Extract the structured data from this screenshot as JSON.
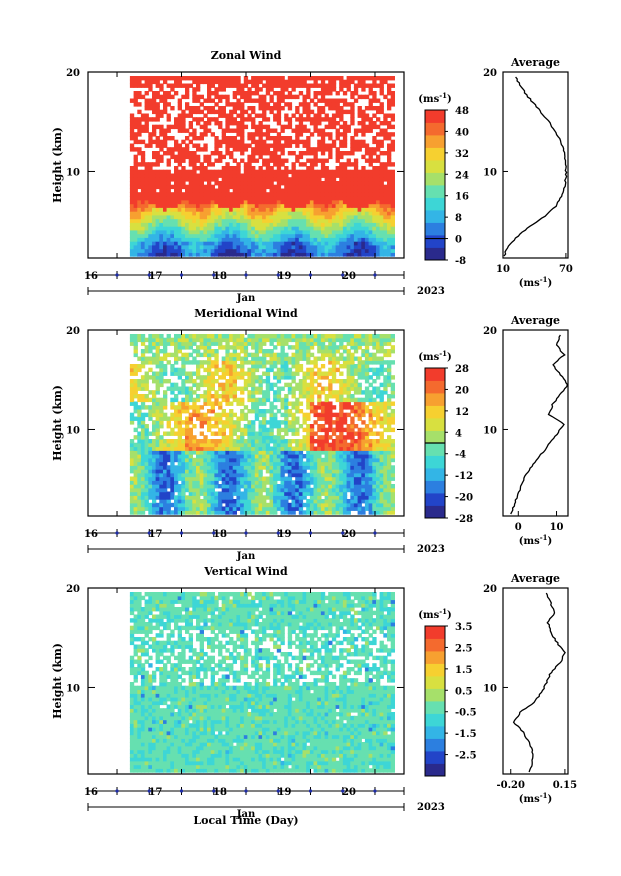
{
  "colormap": [
    "#2a2a8c",
    "#2244c8",
    "#2c7fe0",
    "#33b5e6",
    "#3dd6d6",
    "#66e0b0",
    "#a6e06a",
    "#d8e040",
    "#f6d030",
    "#f7a030",
    "#f46a2e",
    "#f23c2c"
  ],
  "chart_data": [
    {
      "type": "heatmap",
      "title": "Zonal Wind",
      "ylabel": "Height (km)",
      "xlabel": "Jan",
      "year": "2023",
      "x_ticks": [
        "16",
        "17",
        "18",
        "19",
        "20"
      ],
      "y_ticks": [
        "20",
        "10"
      ],
      "xlim": [
        15.55,
        20.45
      ],
      "ylim": [
        1.3,
        20.0
      ],
      "data_x_range": [
        16.2,
        20.3
      ],
      "colorbar": {
        "unit": "(ms-1)",
        "min": -8,
        "max": 48,
        "ticks": [
          "48",
          "40",
          "32",
          "24",
          "16",
          "8",
          "0",
          "-8"
        ],
        "contour_at": 0
      },
      "profile": {
        "title": "Average",
        "xlabel": "(ms-1)",
        "x_ticks": [
          "10",
          "70"
        ],
        "y_ticks": [
          "20",
          "10"
        ],
        "xlim": [
          10,
          72
        ],
        "height": [
          1.5,
          2.5,
          3.5,
          4.5,
          5.5,
          6.5,
          7.5,
          8.5,
          9.5,
          10.5,
          11.5,
          12.5,
          13.5,
          14.5,
          15.5,
          16.5,
          17.5,
          18.5,
          19.5
        ],
        "values": [
          11,
          15,
          24,
          36,
          50,
          60,
          66,
          69,
          70,
          70,
          69,
          67,
          63,
          57,
          50,
          42,
          34,
          27,
          22
        ]
      }
    },
    {
      "type": "heatmap",
      "title": "Meridional Wind",
      "ylabel": "Height (km)",
      "xlabel": "Jan",
      "year": "2023",
      "x_ticks": [
        "16",
        "17",
        "18",
        "19",
        "20"
      ],
      "y_ticks": [
        "20",
        "10"
      ],
      "xlim": [
        15.55,
        20.45
      ],
      "ylim": [
        1.3,
        20.0
      ],
      "data_x_range": [
        16.2,
        20.3
      ],
      "colorbar": {
        "unit": "(ms-1)",
        "min": -28,
        "max": 28,
        "ticks": [
          "28",
          "20",
          "12",
          "4",
          "-4",
          "-12",
          "-20",
          "-28"
        ],
        "contour_at": 0
      },
      "profile": {
        "title": "Average",
        "xlabel": "(ms-1)",
        "x_ticks": [
          "0",
          "10"
        ],
        "y_ticks": [
          "20",
          "10"
        ],
        "xlim": [
          -4,
          13
        ],
        "height": [
          1.5,
          2.5,
          3.5,
          4.5,
          5.5,
          6.5,
          7.5,
          8.5,
          9.5,
          10.5,
          11.5,
          12.5,
          13.5,
          14.5,
          15.5,
          16.5,
          17.5,
          18.5,
          19.5
        ],
        "values": [
          -2,
          -1,
          0,
          1,
          2,
          4,
          6,
          8,
          10,
          12,
          8,
          9,
          11,
          13,
          11,
          9,
          12,
          10,
          11
        ]
      }
    },
    {
      "type": "heatmap",
      "title": "Vertical Wind",
      "ylabel": "Height (km)",
      "xlabel": "Jan",
      "year": "2023",
      "x_ticks": [
        "16",
        "17",
        "18",
        "19",
        "20"
      ],
      "y_ticks": [
        "20",
        "10"
      ],
      "xlim": [
        15.55,
        20.45
      ],
      "ylim": [
        1.3,
        20.0
      ],
      "data_x_range": [
        16.2,
        20.3
      ],
      "colorbar": {
        "unit": "(ms-1)",
        "min": -3.5,
        "max": 3.5,
        "ticks": [
          "3.5",
          "2.5",
          "1.5",
          "0.5",
          "-0.5",
          "-1.5",
          "-2.5"
        ]
      },
      "profile": {
        "title": "Average",
        "xlabel": "(ms-1)",
        "x_ticks": [
          "-0.20",
          "0.15"
        ],
        "y_ticks": [
          "20",
          "10"
        ],
        "xlim": [
          -0.25,
          0.17
        ],
        "height": [
          1.5,
          2.5,
          3.5,
          4.5,
          5.5,
          6.5,
          7.5,
          8.5,
          9.5,
          10.5,
          11.5,
          12.5,
          13.5,
          14.5,
          15.5,
          16.5,
          17.5,
          18.5,
          19.5
        ],
        "values": [
          -0.08,
          -0.06,
          -0.06,
          -0.08,
          -0.12,
          -0.18,
          -0.14,
          -0.05,
          0.0,
          0.03,
          0.06,
          0.12,
          0.15,
          0.1,
          0.06,
          0.04,
          0.08,
          0.06,
          0.03
        ]
      }
    }
  ],
  "footer": {
    "xlabel": "Local Time (Day)"
  }
}
